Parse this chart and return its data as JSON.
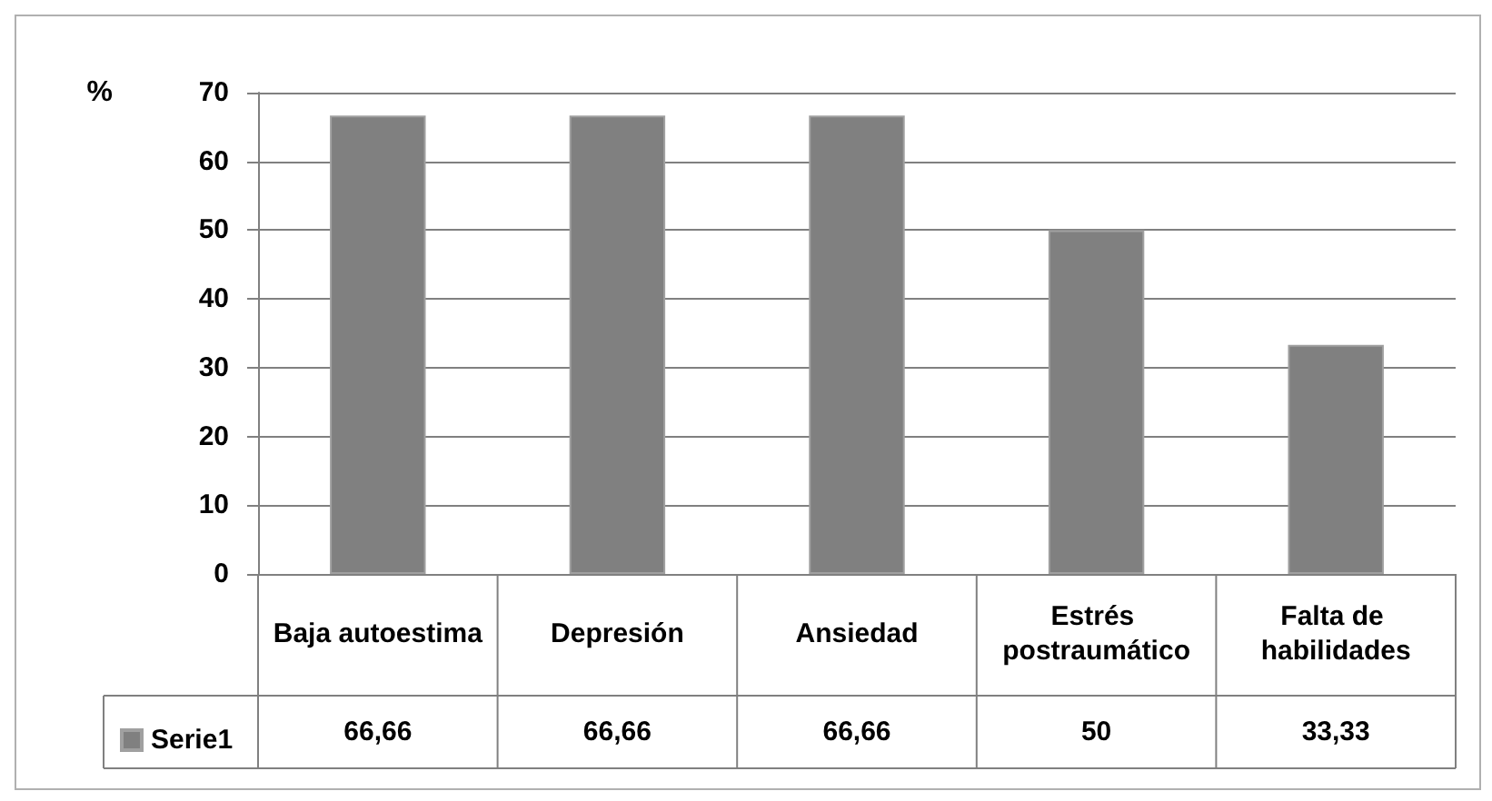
{
  "chart_data": {
    "type": "bar",
    "ylabel": "%",
    "categories": [
      "Baja autoestima",
      "Depresión",
      "Ansiedad",
      "Estrés postraumático",
      "Falta de habilidades"
    ],
    "series": [
      {
        "name": "Serie1",
        "color": "#808080",
        "values": [
          66.66,
          66.66,
          66.66,
          50,
          33.33
        ],
        "value_labels": [
          "66,66",
          "66,66",
          "66,66",
          "50",
          "33,33"
        ]
      }
    ],
    "ylim": [
      0,
      70
    ],
    "yticks": [
      0,
      10,
      20,
      30,
      40,
      50,
      60,
      70
    ],
    "grid": "y",
    "legend": "bottom left"
  }
}
